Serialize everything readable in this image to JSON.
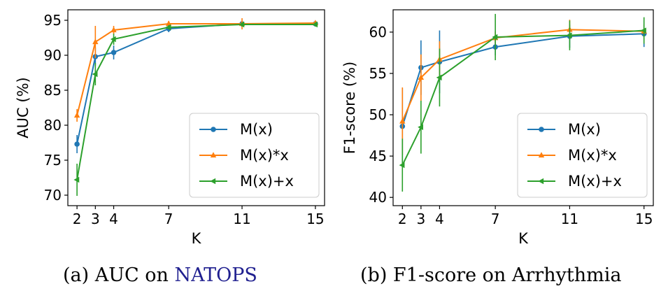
{
  "colors": {
    "M(x)": "#1f77b4",
    "M(x)*x": "#ff7f0e",
    "M(x)+x": "#2ca02c"
  },
  "captions": [
    {
      "prefix": "(a) AUC on ",
      "highlight": "NATOPS"
    },
    {
      "prefix": "(b) F1-score on Arrhythmia",
      "highlight": ""
    }
  ],
  "chart_data": [
    {
      "type": "line",
      "xlabel": "K",
      "ylabel": "AUC (%)",
      "x": [
        2,
        3,
        4,
        7,
        11,
        15
      ],
      "xlim": [
        1.5,
        15.5
      ],
      "ylim": [
        68.5,
        96.5
      ],
      "yticks": [
        70,
        75,
        80,
        85,
        90,
        95
      ],
      "grid": false,
      "legend_position": "lower-right",
      "series": [
        {
          "name": "M(x)",
          "marker": "circle",
          "values": [
            77.3,
            89.8,
            90.4,
            93.8,
            94.5,
            94.5
          ],
          "errors": [
            1.3,
            1.3,
            1.0,
            0.5,
            0.3,
            0.3
          ]
        },
        {
          "name": "M(x)*x",
          "marker": "triangle-up",
          "values": [
            81.4,
            91.9,
            93.6,
            94.5,
            94.5,
            94.6
          ],
          "errors": [
            0.9,
            2.3,
            0.6,
            0.4,
            0.8,
            0.3
          ]
        },
        {
          "name": "M(x)+x",
          "marker": "triangle-left",
          "values": [
            72.2,
            87.3,
            92.3,
            94.0,
            94.4,
            94.4
          ],
          "errors": [
            2.3,
            1.6,
            0.8,
            0.3,
            0.3,
            0.3
          ]
        }
      ]
    },
    {
      "type": "line",
      "xlabel": "K",
      "ylabel": "F1-score (%)",
      "x": [
        2,
        3,
        4,
        7,
        11,
        15
      ],
      "xlim": [
        1.5,
        15.5
      ],
      "ylim": [
        39.0,
        62.7
      ],
      "yticks": [
        40,
        45,
        50,
        55,
        60
      ],
      "grid": false,
      "legend_position": "lower-right",
      "series": [
        {
          "name": "M(x)",
          "marker": "circle",
          "values": [
            48.6,
            55.7,
            56.4,
            58.2,
            59.5,
            59.8
          ],
          "errors": [
            4.6,
            3.3,
            3.8,
            1.0,
            1.4,
            1.6
          ]
        },
        {
          "name": "M(x)*x",
          "marker": "triangle-up",
          "values": [
            49.2,
            54.5,
            56.7,
            59.3,
            60.3,
            60.1
          ],
          "errors": [
            4.1,
            2.8,
            2.2,
            0.8,
            1.2,
            0.8
          ]
        },
        {
          "name": "M(x)+x",
          "marker": "triangle-left",
          "values": [
            43.9,
            48.5,
            54.5,
            59.4,
            59.6,
            60.2
          ],
          "errors": [
            3.2,
            3.2,
            3.5,
            2.8,
            1.8,
            1.6
          ]
        }
      ]
    }
  ]
}
